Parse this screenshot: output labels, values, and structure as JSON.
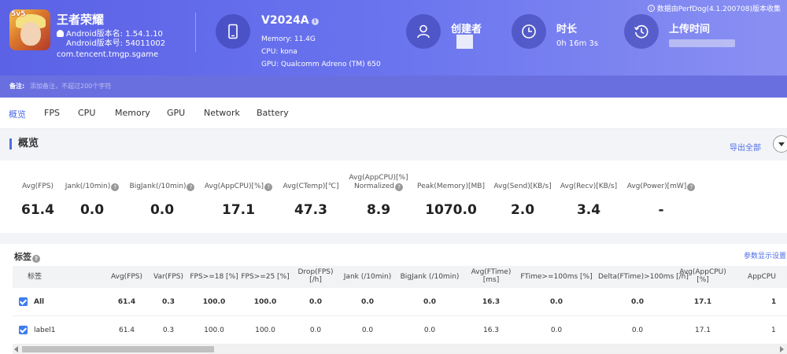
{
  "header": {
    "app": {
      "icon": "honor-of-kings-app-icon",
      "icon_badge": "5v5",
      "name": "王者荣耀",
      "version_name": "Android版本名: 1.54.1.10",
      "version_code": "Android版本号: 54011002",
      "package": "com.tencent.tmgp.sgame"
    },
    "device": {
      "icon": "phone-icon",
      "name": "V2024A",
      "memory": "Memory: 11.4G",
      "cpu": "CPU: kona",
      "gpu": "GPU: Qualcomm Adreno (TM) 650"
    },
    "creator": {
      "icon": "user-icon",
      "label": "创建者"
    },
    "duration": {
      "icon": "clock-icon",
      "label": "时长",
      "value": "0h 16m 3s"
    },
    "upload": {
      "icon": "history-icon",
      "label": "上传时间"
    },
    "version_note": "数据由PerfDog(4.1.200708)版本收集"
  },
  "remark": {
    "label": "备注:",
    "placeholder": "添加备注，不超过200个字符"
  },
  "tabs": [
    "概览",
    "FPS",
    "CPU",
    "Memory",
    "GPU",
    "Network",
    "Battery"
  ],
  "overview": {
    "title": "概览",
    "export_label": "导出全部",
    "metrics": [
      {
        "label": "Avg(FPS)",
        "value": "61.4",
        "help": false
      },
      {
        "label": "Jank(/10min)",
        "value": "0.0",
        "help": true
      },
      {
        "label": "BigJank(/10min)",
        "value": "0.0",
        "help": true
      },
      {
        "label": "Avg(AppCPU)[%]",
        "value": "17.1",
        "help": true
      },
      {
        "label": "Avg(CTemp)[℃]",
        "value": "47.3",
        "help": false
      },
      {
        "label": "Avg(AppCPU)[%]",
        "label2": "Normalized",
        "value": "8.9",
        "help": true
      },
      {
        "label": "Peak(Memory)[MB]",
        "value": "1070.0",
        "help": false
      },
      {
        "label": "Avg(Send)[KB/s]",
        "value": "2.0",
        "help": false
      },
      {
        "label": "Avg(Recv)[KB/s]",
        "value": "3.4",
        "help": false
      },
      {
        "label": "Avg(Power)[mW]",
        "value": "-",
        "help": true
      }
    ]
  },
  "tags": {
    "title": "标签",
    "param_link": "参数显示设置",
    "columns": [
      {
        "label": "标签"
      },
      {
        "label": "Avg(FPS)"
      },
      {
        "label": "Var(FPS)"
      },
      {
        "label": "FPS>=18 [%]"
      },
      {
        "label": "FPS>=25 [%]"
      },
      {
        "label": "Drop(FPS)",
        "label2": "[/h]"
      },
      {
        "label": "Jank (/10min)"
      },
      {
        "label": "BigJank (/10min)"
      },
      {
        "label": "Avg(FTime)",
        "label2": "[ms]"
      },
      {
        "label": "FTime>=100ms [%]"
      },
      {
        "label": "Delta(FTime)>100ms [/h]"
      },
      {
        "label": "Avg(AppCPU)",
        "label2": "[%]"
      },
      {
        "label": "AppCPU"
      }
    ],
    "rows": [
      {
        "checked": true,
        "bold": true,
        "cells": [
          "All",
          "61.4",
          "0.3",
          "100.0",
          "100.0",
          "0.0",
          "0.0",
          "0.0",
          "16.3",
          "0.0",
          "0.0",
          "17.1",
          "1"
        ]
      },
      {
        "checked": true,
        "bold": false,
        "cells": [
          "label1",
          "61.4",
          "0.3",
          "100.0",
          "100.0",
          "0.0",
          "0.0",
          "0.0",
          "16.3",
          "0.0",
          "0.0",
          "17.1",
          "1"
        ]
      }
    ]
  }
}
